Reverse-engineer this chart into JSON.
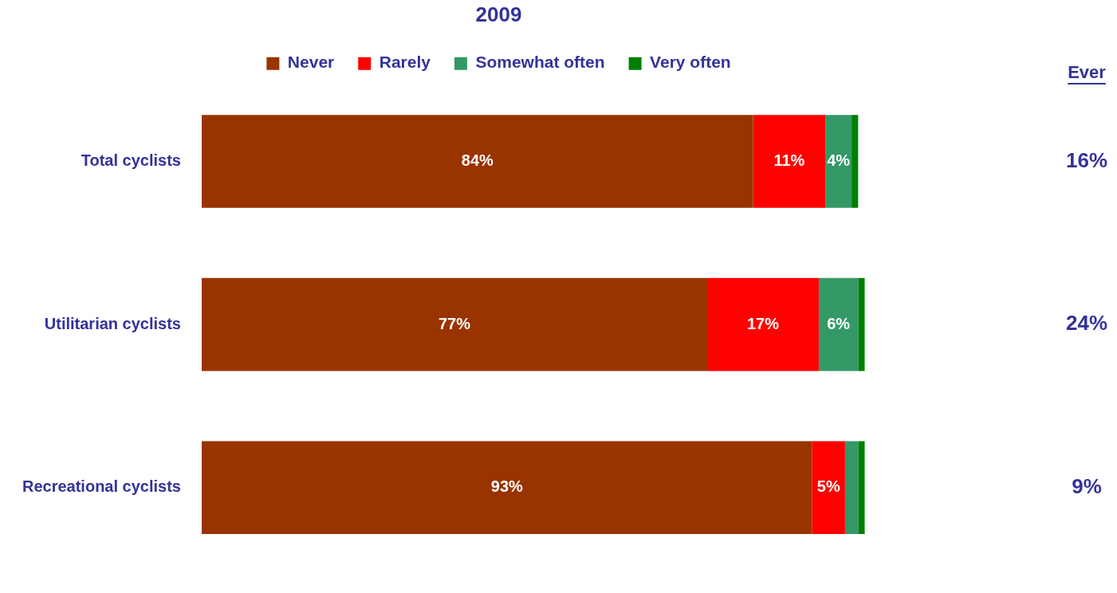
{
  "chart_data": {
    "type": "bar",
    "orientation": "horizontal",
    "stacked": true,
    "title": "2009",
    "legend": "top",
    "categories": [
      "Total cyclists",
      "Utilitarian cyclists",
      "Recreational cyclists"
    ],
    "series": [
      {
        "name": "Never",
        "color": "#993300",
        "values": [
          84,
          77,
          93
        ],
        "value_labels": [
          "84%",
          "77%",
          "93%"
        ]
      },
      {
        "name": "Rarely",
        "color": "#ff0000",
        "values": [
          11,
          17,
          5
        ],
        "value_labels": [
          "11%",
          "17%",
          "5%"
        ]
      },
      {
        "name": "Somewhat often",
        "color": "#339966",
        "values": [
          4,
          6,
          2
        ],
        "value_labels": [
          "4%",
          "6%",
          null
        ]
      },
      {
        "name": "Very often",
        "color": "#008000",
        "values": [
          1,
          1,
          1
        ],
        "value_labels": [
          null,
          null,
          null
        ]
      }
    ],
    "annotations": [
      "Ever",
      "16%",
      "24%",
      "9%"
    ]
  }
}
